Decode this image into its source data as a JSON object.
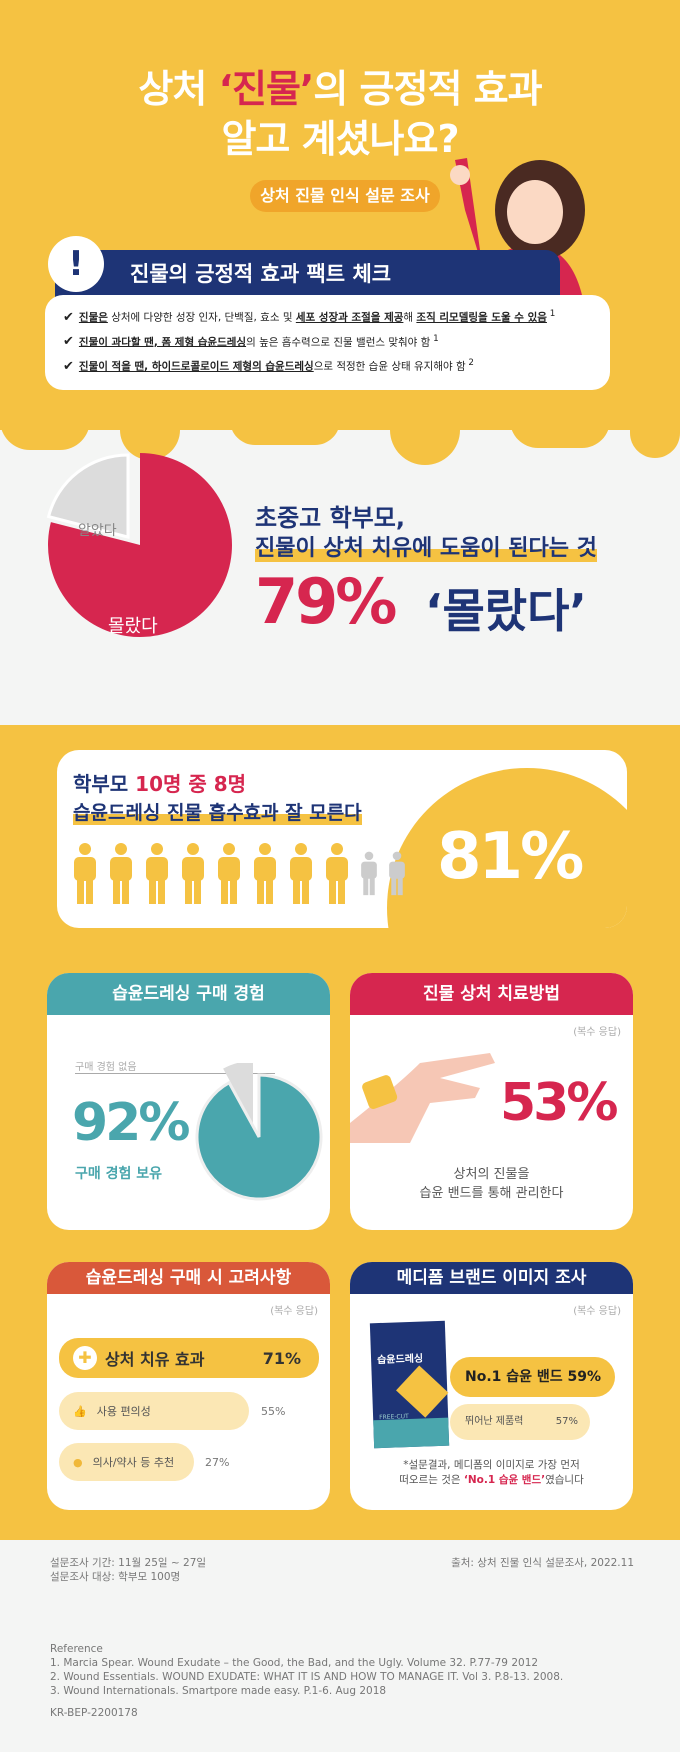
{
  "header": {
    "title_pre": "상처 ",
    "title_quote": "‘진물’",
    "title_post": "의 긍정적 효과",
    "title_line2": "알고 계셨나요?",
    "subtitle": "상처 진물 인식 설문 조사"
  },
  "facts": {
    "heading": "진물의 긍정적 효과 팩트 체크",
    "items": [
      {
        "b1": "진물은",
        "t1": " 상처에 다양한 성장 인자, 단백질, 효소 및 ",
        "b2": "세포 성장과 조절을 제공",
        "t2": "해 ",
        "b3": "조직 리모델링을 도울 수 있음",
        "sup": " 1"
      },
      {
        "b1": "진물이 과다할 땐, 폼 제형 습윤드레싱",
        "t1": "의 높은 흡수력으로 진물 밸런스 맞춰야 함",
        "sup": " 1"
      },
      {
        "b1": "진물이 적을 땐, 하이드로콜로이드 제형의 습윤드레싱",
        "t1": "으로 적정한 습윤 상태 유지해야 함",
        "sup": " 2"
      }
    ]
  },
  "survey1": {
    "pie": {
      "knew_label": "알았다",
      "didnt_label": "몰랐다",
      "didnt_pct": 79
    },
    "line1": "초중고 학부모,",
    "line2": "진물이 상처 치유에 도움이 된다는 것",
    "big_pct": "79%",
    "big_word": "‘몰랐다’"
  },
  "survey2": {
    "line1_pre": "학부모 ",
    "line1_hl": "10명 중 8명",
    "line2": "습윤드레싱 진물 흡수효과 잘 모른다",
    "pct": "81%",
    "people_total": 10,
    "people_highlighted": 8
  },
  "purchase": {
    "heading": "습윤드레싱 구매 경험",
    "none_label": "구매 경험 없음",
    "pct": "92%",
    "have_label": "구매 경험 보유",
    "value": 92
  },
  "treatment": {
    "heading": "진물 상처 치료방법",
    "note": "(복수 응답)",
    "pct": "53%",
    "desc1": "상처의 진물을",
    "desc2": "습윤 밴드를 통해 관리한다"
  },
  "considerations": {
    "heading": "습윤드레싱 구매 시 고려사항",
    "note": "(복수 응답)",
    "items": [
      {
        "label": "상처 치유 효과",
        "pct": "71%",
        "value": 71
      },
      {
        "label": "사용 편의성",
        "pct": "55%",
        "value": 55
      },
      {
        "label": "의사/약사 등 추천",
        "pct": "27%",
        "value": 27
      }
    ]
  },
  "brand": {
    "heading": "메디폼 브랜드 이미지 조사",
    "note": "(복수 응답)",
    "box_label": "습윤드레싱",
    "box_small": "FREE-CUT",
    "items": [
      {
        "label": "No.1 습윤 밴드",
        "pct": "59%",
        "value": 59
      },
      {
        "label": "뛰어난 제품력",
        "pct": "57%",
        "value": 57
      }
    ],
    "foot1": "*설문결과, 메디폼의 이미지로 가장 먼저",
    "foot2_pre": "떠오르는 것은 ",
    "foot2_hl": "‘No.1 습윤 밴드’",
    "foot2_post": "였습니다"
  },
  "footer": {
    "period": "설문조사 기간: 11월 25일 ~ 27일",
    "target": "설문조사 대상: 학부모 100명",
    "source": "출처: 상처 진물 인식 설문조사, 2022.11",
    "ref_title": "Reference",
    "refs": [
      "1. Marcia Spear. Wound Exudate  –  the Good, the Bad, and the Ugly. Volume 32. P.77-79 2012",
      "2. Wound Essentials. WOUND EXUDATE: WHAT IT IS AND HOW TO MANAGE IT. Vol 3. P.8-13. 2008.",
      "3. Wound Internationals. Smartpore made easy. P.1-6. Aug 2018"
    ],
    "code": "KR-BEP-2200178"
  },
  "colors": {
    "yellow": "#f5c242",
    "navy": "#1e3476",
    "red": "#d6264f",
    "teal": "#4aa6ad",
    "orange": "#d9583a"
  }
}
